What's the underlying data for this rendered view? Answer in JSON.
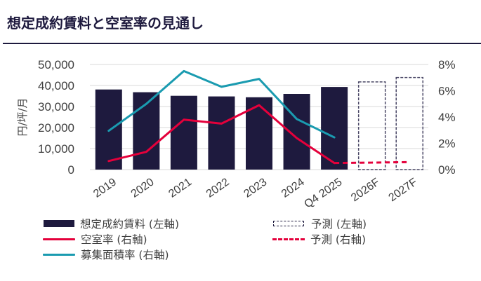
{
  "page": {
    "title": "想定成約賃料と空室率の見通し"
  },
  "chart_data": {
    "type": "bar",
    "title": "想定成約賃料と空室率の見通し",
    "categories": [
      "2019",
      "2020",
      "2021",
      "2022",
      "2023",
      "2024",
      "Q4 2025",
      "2026F",
      "2027F"
    ],
    "ylabel": "円/坪/月",
    "ylabel_right": "",
    "xlabel": "",
    "ylim": [
      0,
      50000
    ],
    "ylim_right": [
      0,
      8
    ],
    "yticks": [
      "0",
      "10,000",
      "20,000",
      "30,000",
      "40,000",
      "50,000"
    ],
    "yticks_right": [
      "0%",
      "2%",
      "4%",
      "6%",
      "8%"
    ],
    "grid": true,
    "legend_position": "bottom",
    "colors": {
      "rent": "#1e1a3e",
      "vacancy": "#e4003b",
      "availability": "#1a9bb0",
      "grid": "#e6e6e6"
    },
    "series": [
      {
        "name": "想定成約賃料 (左軸)",
        "kind": "bar",
        "axis": "left",
        "values": [
          38100,
          36800,
          35100,
          34800,
          34400,
          36000,
          39300,
          null,
          null
        ]
      },
      {
        "name": "予測 (左軸)",
        "kind": "bar-forecast",
        "axis": "left",
        "values": [
          null,
          null,
          null,
          null,
          null,
          null,
          null,
          41700,
          43800
        ]
      },
      {
        "name": "空室率 (右軸)",
        "kind": "line",
        "axis": "right",
        "values": [
          0.65,
          1.35,
          3.8,
          3.5,
          4.9,
          2.4,
          0.5,
          null,
          null
        ]
      },
      {
        "name": "予測 (右軸)",
        "kind": "line-forecast",
        "axis": "right",
        "values": [
          null,
          null,
          null,
          null,
          null,
          null,
          0.5,
          0.53,
          0.57
        ]
      },
      {
        "name": "募集面積率 (右軸)",
        "kind": "line",
        "axis": "right",
        "values": [
          2.95,
          5.0,
          7.5,
          6.3,
          6.9,
          3.85,
          2.45,
          null,
          null
        ]
      }
    ]
  },
  "legend": {
    "rent": "想定成約賃料 (左軸)",
    "vacancy": "空室率 (右軸)",
    "availability": "募集面積率 (右軸)",
    "forecast_left": "予測 (左軸)",
    "forecast_right": "予測 (右軸)"
  }
}
